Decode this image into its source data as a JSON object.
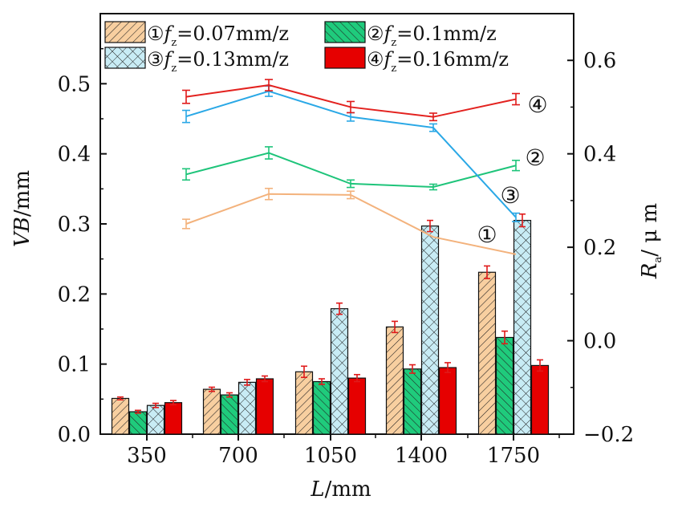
{
  "chart_data": {
    "type": "bar",
    "categories": [
      "350",
      "700",
      "1050",
      "1400",
      "1750"
    ],
    "xlabel_main": "L",
    "xlabel_unit": "/mm",
    "ylabel_main": "VB",
    "ylabel_unit": "/mm",
    "y2label_main": "R",
    "y2label_sub": "a",
    "y2label_unit": "/ μ m",
    "ylim": [
      0.0,
      0.6
    ],
    "y2lim": [
      -0.2,
      0.7
    ],
    "yticks": [
      "0.0",
      "0.1",
      "0.2",
      "0.3",
      "0.4",
      "0.5"
    ],
    "y2ticks": [
      "−0.2",
      "0.0",
      "0.2",
      "0.4",
      "0.6"
    ],
    "legend": [
      {
        "num": "①",
        "label": "f",
        "sub": "z",
        "value": "=0.07mm/z"
      },
      {
        "num": "②",
        "label": "f",
        "sub": "z",
        "value": "=0.1mm/z"
      },
      {
        "num": "③",
        "label": "f",
        "sub": "z",
        "value": "=0.13mm/z"
      },
      {
        "num": "④",
        "label": "f",
        "sub": "z",
        "value": "=0.16mm/z"
      }
    ],
    "bar_series": [
      {
        "values": [
          0.051,
          0.064,
          0.089,
          0.153,
          0.231
        ],
        "errors": [
          0.002,
          0.003,
          0.008,
          0.008,
          0.009
        ],
        "fill": "#f8cfa0",
        "pattern": "diag-right"
      },
      {
        "values": [
          0.032,
          0.056,
          0.075,
          0.093,
          0.138
        ],
        "errors": [
          0.002,
          0.003,
          0.004,
          0.006,
          0.009
        ],
        "fill": "#1fcb7c",
        "pattern": "diag-left"
      },
      {
        "values": [
          0.041,
          0.074,
          0.179,
          0.297,
          0.305
        ],
        "errors": [
          0.003,
          0.004,
          0.008,
          0.008,
          0.009
        ],
        "fill": "#c8ecf5",
        "pattern": "cross"
      },
      {
        "values": [
          0.045,
          0.079,
          0.08,
          0.095,
          0.098
        ],
        "errors": [
          0.003,
          0.004,
          0.005,
          0.007,
          0.008
        ],
        "fill": "#e60000",
        "pattern": "none"
      }
    ],
    "line_series": [
      {
        "label": "①",
        "color": "#f3b27c",
        "values": [
          0.25,
          0.314,
          0.312,
          0.222,
          0.185
        ],
        "errors": [
          0.01,
          0.012,
          0.008,
          0.0,
          0.0
        ]
      },
      {
        "label": "②",
        "color": "#1ec47a",
        "values": [
          0.356,
          0.402,
          0.336,
          0.329,
          0.375
        ],
        "errors": [
          0.012,
          0.013,
          0.008,
          0.006,
          0.011
        ]
      },
      {
        "label": "③",
        "color": "#2aa8e6",
        "values": [
          0.48,
          0.534,
          0.479,
          0.456,
          0.264
        ],
        "errors": [
          0.013,
          0.011,
          0.009,
          0.008,
          0.009
        ]
      },
      {
        "label": "④",
        "color": "#e3221f",
        "values": [
          0.522,
          0.547,
          0.5,
          0.479,
          0.517
        ],
        "errors": [
          0.014,
          0.012,
          0.012,
          0.008,
          0.012
        ]
      }
    ]
  }
}
